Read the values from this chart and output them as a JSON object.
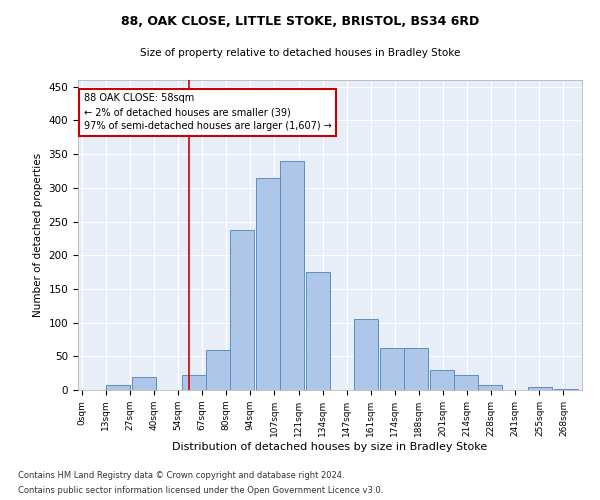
{
  "title1": "88, OAK CLOSE, LITTLE STOKE, BRISTOL, BS34 6RD",
  "title2": "Size of property relative to detached houses in Bradley Stoke",
  "xlabel": "Distribution of detached houses by size in Bradley Stoke",
  "ylabel": "Number of detached properties",
  "footer1": "Contains HM Land Registry data © Crown copyright and database right 2024.",
  "footer2": "Contains public sector information licensed under the Open Government Licence v3.0.",
  "annotation_line1": "88 OAK CLOSE: 58sqm",
  "annotation_line2": "← 2% of detached houses are smaller (39)",
  "annotation_line3": "97% of semi-detached houses are larger (1,607) →",
  "bar_left_edges": [
    0,
    13,
    27,
    40,
    54,
    67,
    80,
    94,
    107,
    121,
    134,
    147,
    161,
    174,
    188,
    201,
    214,
    228,
    241,
    255
  ],
  "bar_heights": [
    0,
    8,
    20,
    0,
    22,
    60,
    238,
    315,
    340,
    175,
    0,
    105,
    62,
    62,
    30,
    22,
    8,
    0,
    5,
    2
  ],
  "bin_width": 13,
  "bar_color": "#aec6e8",
  "bar_edge_color": "#5a8fc0",
  "vline_x": 58,
  "vline_color": "#cc0000",
  "annotation_box_color": "#cc0000",
  "background_color": "#e8eef8",
  "ylim": [
    0,
    460
  ],
  "xlim": [
    -2,
    270
  ],
  "yticks": [
    0,
    50,
    100,
    150,
    200,
    250,
    300,
    350,
    400,
    450
  ],
  "tick_labels": [
    "0sqm",
    "13sqm",
    "27sqm",
    "40sqm",
    "54sqm",
    "67sqm",
    "80sqm",
    "94sqm",
    "107sqm",
    "121sqm",
    "134sqm",
    "147sqm",
    "161sqm",
    "174sqm",
    "188sqm",
    "201sqm",
    "214sqm",
    "228sqm",
    "241sqm",
    "255sqm",
    "268sqm"
  ]
}
